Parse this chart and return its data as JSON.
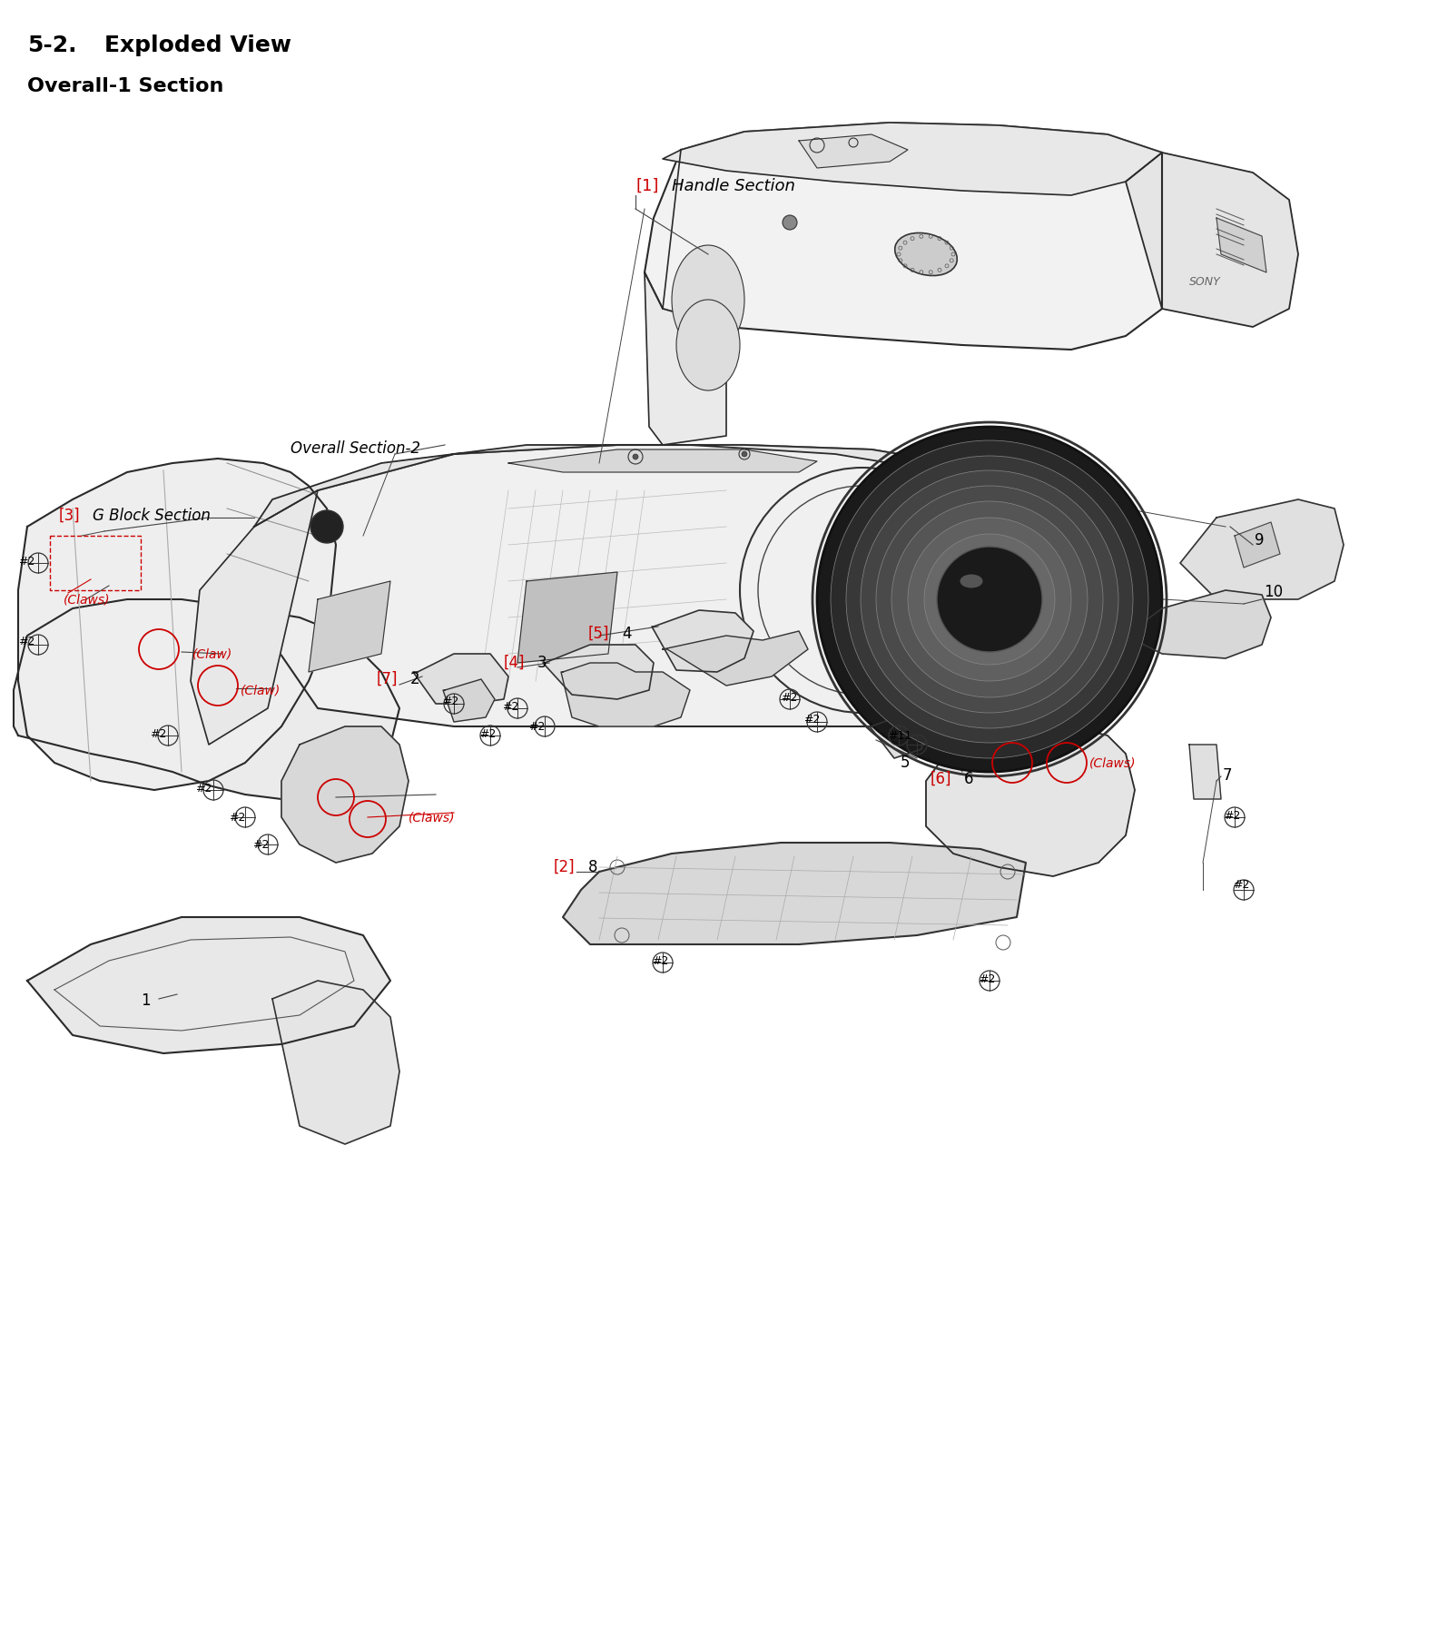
{
  "title1": "5-2.",
  "title2": "Exploded View",
  "subtitle": "Overall-1 Section",
  "bg_color": "#ffffff",
  "text_color": "#000000",
  "red_color": "#cc0000",
  "fig_width": 15.84,
  "fig_height": 18.05,
  "dpi": 100
}
